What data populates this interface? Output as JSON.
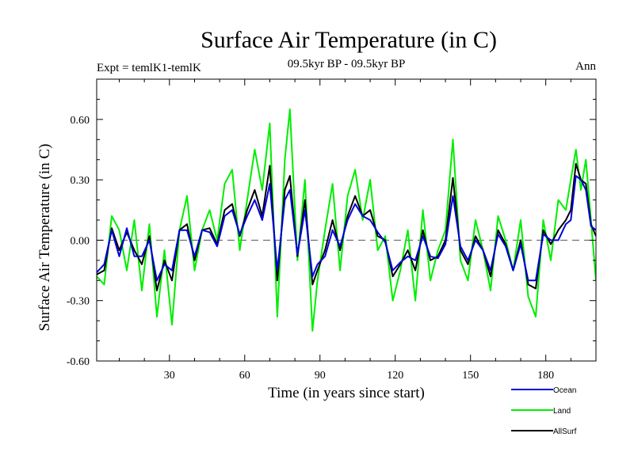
{
  "chart_data": {
    "type": "line",
    "title": "Surface Air Temperature (in C)",
    "subtitle_left": "Expt = temlK1-temlK",
    "subtitle_center": "09.5kyr BP - 09.5kyr BP",
    "subtitle_right": "Ann",
    "xlabel": "Time (in years since start)",
    "ylabel": "Surface Air Temperature (in C)",
    "xlim": [
      1,
      200
    ],
    "ylim": [
      -0.6,
      0.8
    ],
    "xticks": [
      30,
      60,
      90,
      120,
      150,
      180
    ],
    "xtick_labels": [
      "30",
      "60",
      "90",
      "120",
      "150",
      "180"
    ],
    "yticks": [
      -0.6,
      -0.3,
      0.0,
      0.3,
      0.6
    ],
    "ytick_labels": [
      "-0.60",
      "-0.30",
      "0.00",
      "0.30",
      "0.60"
    ],
    "zero_line": true,
    "legend_position": "bottom-right, below plot",
    "series": [
      {
        "name": "Land",
        "color": "#00ee00",
        "x": [
          1,
          4,
          7,
          10,
          13,
          16,
          19,
          22,
          25,
          28,
          31,
          34,
          37,
          40,
          43,
          46,
          49,
          52,
          55,
          58,
          61,
          64,
          67,
          70,
          73,
          76,
          78,
          81,
          84,
          87,
          89,
          92,
          95,
          98,
          101,
          104,
          107,
          110,
          113,
          116,
          119,
          122,
          125,
          128,
          131,
          134,
          137,
          140,
          143,
          146,
          149,
          152,
          155,
          158,
          161,
          164,
          167,
          170,
          173,
          176,
          179,
          182,
          185,
          188,
          190,
          192,
          194,
          196,
          198,
          200
        ],
        "values": [
          -0.18,
          -0.22,
          0.12,
          0.05,
          -0.15,
          0.1,
          -0.25,
          0.08,
          -0.38,
          -0.05,
          -0.42,
          0.05,
          0.22,
          -0.15,
          0.05,
          0.15,
          0.0,
          0.28,
          0.35,
          -0.05,
          0.2,
          0.45,
          0.25,
          0.58,
          -0.38,
          0.4,
          0.65,
          -0.1,
          0.3,
          -0.45,
          -0.2,
          0.05,
          0.28,
          -0.15,
          0.22,
          0.35,
          0.1,
          0.3,
          -0.05,
          0.02,
          -0.3,
          -0.15,
          0.05,
          -0.3,
          0.15,
          -0.2,
          -0.05,
          0.05,
          0.5,
          -0.1,
          -0.2,
          0.1,
          -0.05,
          -0.25,
          0.12,
          0.0,
          -0.15,
          0.1,
          -0.28,
          -0.38,
          0.1,
          -0.1,
          0.2,
          0.15,
          0.3,
          0.45,
          0.25,
          0.4,
          0.1,
          -0.2
        ]
      },
      {
        "name": "AllSurf",
        "color": "#000000",
        "x": [
          1,
          4,
          7,
          10,
          13,
          16,
          19,
          22,
          25,
          28,
          31,
          34,
          37,
          40,
          43,
          46,
          49,
          52,
          55,
          58,
          61,
          64,
          67,
          70,
          73,
          76,
          78,
          81,
          84,
          87,
          89,
          92,
          95,
          98,
          101,
          104,
          107,
          110,
          113,
          116,
          119,
          122,
          125,
          128,
          131,
          134,
          137,
          140,
          143,
          146,
          149,
          152,
          155,
          158,
          161,
          164,
          167,
          170,
          173,
          176,
          179,
          182,
          185,
          188,
          190,
          192,
          194,
          196,
          198,
          200
        ],
        "values": [
          -0.17,
          -0.15,
          0.06,
          -0.05,
          0.04,
          -0.05,
          -0.12,
          0.02,
          -0.25,
          -0.1,
          -0.2,
          0.05,
          0.08,
          -0.1,
          0.05,
          0.06,
          -0.02,
          0.15,
          0.18,
          0.02,
          0.15,
          0.25,
          0.12,
          0.37,
          -0.2,
          0.25,
          0.32,
          -0.08,
          0.2,
          -0.22,
          -0.15,
          -0.05,
          0.1,
          -0.05,
          0.12,
          0.22,
          0.12,
          0.15,
          0.02,
          0.0,
          -0.18,
          -0.12,
          -0.05,
          -0.15,
          0.05,
          -0.1,
          -0.08,
          0.0,
          0.31,
          -0.05,
          -0.12,
          0.02,
          -0.05,
          -0.18,
          0.05,
          -0.02,
          -0.15,
          0.0,
          -0.22,
          -0.24,
          0.05,
          -0.02,
          0.05,
          0.1,
          0.15,
          0.38,
          0.3,
          0.28,
          0.08,
          0.02
        ]
      },
      {
        "name": "Ocean",
        "color": "#0000dd",
        "x": [
          1,
          4,
          7,
          10,
          13,
          16,
          19,
          22,
          25,
          28,
          31,
          34,
          37,
          40,
          43,
          46,
          49,
          52,
          55,
          58,
          61,
          64,
          67,
          70,
          73,
          76,
          78,
          81,
          84,
          87,
          89,
          92,
          95,
          98,
          101,
          104,
          107,
          110,
          113,
          116,
          119,
          122,
          125,
          128,
          131,
          134,
          137,
          140,
          143,
          146,
          149,
          152,
          155,
          158,
          161,
          164,
          167,
          170,
          173,
          176,
          179,
          182,
          185,
          188,
          190,
          192,
          194,
          196,
          198,
          200
        ],
        "values": [
          -0.16,
          -0.12,
          0.05,
          -0.08,
          0.06,
          -0.08,
          -0.08,
          0.0,
          -0.2,
          -0.12,
          -0.15,
          0.05,
          0.05,
          -0.08,
          0.05,
          0.04,
          -0.03,
          0.12,
          0.15,
          0.03,
          0.12,
          0.2,
          0.1,
          0.28,
          -0.15,
          0.2,
          0.25,
          -0.07,
          0.15,
          -0.18,
          -0.12,
          -0.08,
          0.05,
          -0.03,
          0.1,
          0.18,
          0.12,
          0.1,
          0.04,
          -0.01,
          -0.15,
          -0.11,
          -0.08,
          -0.1,
          0.02,
          -0.08,
          -0.09,
          -0.02,
          0.22,
          -0.03,
          -0.1,
          0.0,
          -0.05,
          -0.15,
          0.03,
          -0.03,
          -0.15,
          -0.02,
          -0.2,
          -0.2,
          0.03,
          0.0,
          0.0,
          0.08,
          0.1,
          0.32,
          0.3,
          0.25,
          0.07,
          0.05
        ]
      }
    ],
    "legend": [
      {
        "name": "Ocean",
        "color": "#0000dd"
      },
      {
        "name": "Land",
        "color": "#00ee00"
      },
      {
        "name": "AllSurf",
        "color": "#000000"
      }
    ]
  }
}
